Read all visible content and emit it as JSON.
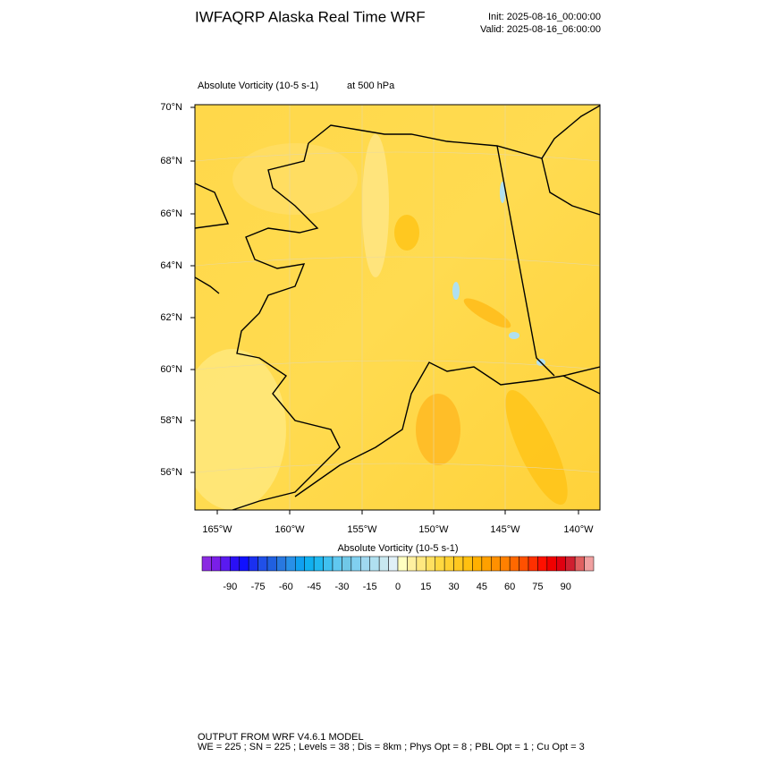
{
  "header": {
    "title": "IWFAQRP Alaska Real Time WRF",
    "init": "Init: 2025-08-16_00:00:00",
    "valid": "Valid: 2025-08-16_06:00:00"
  },
  "map": {
    "field": "Absolute Vorticity   (10-5 s-1)",
    "level": "at   500 hPa",
    "lat_labels": [
      "70°N",
      "68°N",
      "66°N",
      "64°N",
      "62°N",
      "60°N",
      "58°N",
      "56°N"
    ],
    "lon_labels": [
      "165°W",
      "160°W",
      "155°W",
      "150°W",
      "145°W",
      "140°W"
    ]
  },
  "colorbar": {
    "title": "Absolute Vorticity  (10-5 s-1)",
    "colors": [
      "#8a2be2",
      "#7a1fe8",
      "#5a1af0",
      "#2a10f5",
      "#1010ff",
      "#1a30f0",
      "#2050e8",
      "#2060e0",
      "#2878e0",
      "#2890e8",
      "#10a0f0",
      "#10b0f0",
      "#20b8f0",
      "#40c0f0",
      "#60c8f0",
      "#70c8e8",
      "#80d0f0",
      "#a0d8f0",
      "#b0e0f0",
      "#c8e8f0",
      "#e0f0f8",
      "#ffffc0",
      "#fff0a0",
      "#ffe880",
      "#ffe060",
      "#ffd840",
      "#ffd030",
      "#ffc820",
      "#ffc010",
      "#ffb000",
      "#ffa000",
      "#ff9000",
      "#ff8000",
      "#ff6800",
      "#ff5000",
      "#ff3000",
      "#ff1000",
      "#f00000",
      "#e00010",
      "#d02030",
      "#e06060",
      "#f0a0a0"
    ],
    "tick_labels": [
      "-90",
      "-75",
      "-60",
      "-45",
      "-30",
      "-15",
      "0",
      "15",
      "30",
      "45",
      "60",
      "75",
      "90"
    ]
  },
  "footer": {
    "line1": "OUTPUT FROM WRF V4.6.1 MODEL",
    "line2": "WE = 225 ; SN = 225 ; Levels = 38 ; Dis = 8km ; Phys Opt = 8 ; PBL Opt = 1 ; Cu Opt = 3"
  }
}
